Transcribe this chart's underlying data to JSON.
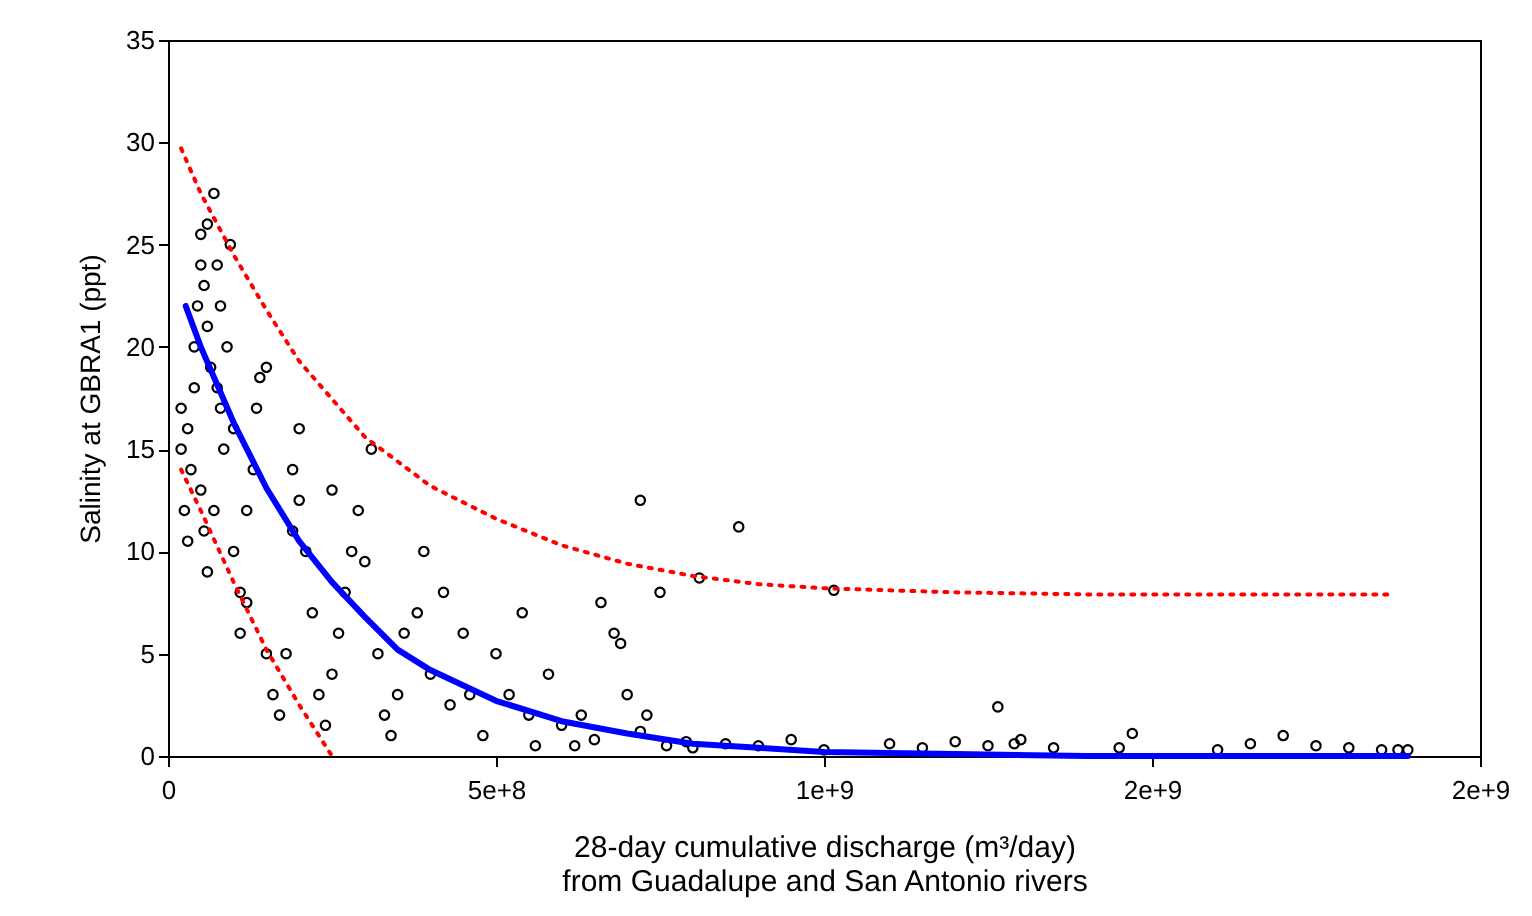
{
  "chart_data": {
    "type": "scatter",
    "xlabel": "28-day cumulative discharge (m³/day)\nfrom Guadalupe and San Antonio rivers",
    "ylabel": "Salinity at GBRA1 (ppt)",
    "xlim": [
      0,
      2000000000
    ],
    "ylim": [
      0,
      35
    ],
    "xticks": [
      0,
      {
        "value": 500000000,
        "label": "5e+8"
      },
      {
        "value": 1000000000,
        "label": "1e+9"
      },
      {
        "value": 1500000000,
        "label": "2e+9"
      },
      {
        "value": 2000000000,
        "label": "2e+9"
      }
    ],
    "yticks": [
      0,
      5,
      10,
      15,
      20,
      25,
      30,
      35
    ],
    "grid": false,
    "marker": "circle",
    "series": [
      {
        "color": "#000000",
        "x": [
          20000000,
          20000000,
          25000000,
          30000000,
          30000000,
          35000000,
          40000000,
          40000000,
          45000000,
          50000000,
          50000000,
          55000000,
          60000000,
          60000000,
          65000000,
          70000000,
          75000000,
          80000000,
          80000000,
          85000000,
          50000000,
          55000000,
          60000000,
          70000000,
          75000000,
          90000000,
          95000000,
          100000000,
          100000000,
          110000000,
          110000000,
          120000000,
          120000000,
          130000000,
          135000000,
          140000000,
          150000000,
          150000000,
          160000000,
          170000000,
          180000000,
          190000000,
          190000000,
          200000000,
          200000000,
          210000000,
          220000000,
          230000000,
          240000000,
          250000000,
          260000000,
          270000000,
          280000000,
          290000000,
          250000000,
          310000000,
          300000000,
          320000000,
          330000000,
          340000000,
          350000000,
          360000000,
          380000000,
          390000000,
          400000000,
          420000000,
          430000000,
          450000000,
          460000000,
          480000000,
          500000000,
          520000000,
          540000000,
          550000000,
          560000000,
          580000000,
          600000000,
          620000000,
          630000000,
          650000000,
          660000000,
          680000000,
          690000000,
          700000000,
          720000000,
          720000000,
          730000000,
          750000000,
          760000000,
          790000000,
          800000000,
          810000000,
          870000000,
          850000000,
          900000000,
          950000000,
          1000000000,
          1015000000,
          1100000000,
          1150000000,
          1200000000,
          1250000000,
          1265000000,
          1290000000,
          1300000000,
          1350000000,
          1450000000,
          1470000000,
          1600000000,
          1650000000,
          1700000000,
          1750000000,
          1800000000,
          1850000000,
          1875000000,
          1890000000
        ],
        "values": [
          17,
          15,
          12,
          10.5,
          16,
          14,
          18,
          20,
          22,
          24,
          25.5,
          23,
          21,
          26,
          19,
          27.5,
          24,
          22,
          17,
          15,
          13,
          11,
          9,
          12,
          18,
          20,
          25,
          16,
          10,
          8,
          6,
          7.5,
          12,
          14,
          17,
          18.5,
          19,
          5,
          3,
          2,
          5,
          11,
          14,
          16,
          12.5,
          10,
          7,
          3,
          1.5,
          4,
          6,
          8,
          10,
          12,
          13,
          15,
          9.5,
          5,
          2,
          1,
          3,
          6,
          7,
          10,
          4,
          8,
          2.5,
          6,
          3,
          1,
          5,
          3,
          7,
          2,
          0.5,
          4,
          1.5,
          0.5,
          2,
          0.8,
          7.5,
          6,
          5.5,
          3,
          12.5,
          1.2,
          2,
          8,
          0.5,
          0.7,
          0.4,
          8.7,
          11.2,
          0.6,
          0.5,
          0.8,
          0.3,
          8.1,
          0.6,
          0.4,
          0.7,
          0.5,
          2.4,
          0.6,
          0.8,
          0.4,
          0.4,
          1.1,
          0.3,
          0.6,
          1,
          0.5,
          0.4,
          0.3,
          0.3,
          0.3
        ]
      },
      {
        "type": "line",
        "marker": "none",
        "color": "#0000ff",
        "line_style": "solid",
        "x": [
          27000000,
          50000000,
          100000000,
          150000000,
          200000000,
          250000000,
          300000000,
          350000000,
          400000000,
          500000000,
          600000000,
          700000000,
          800000000,
          900000000,
          1000000000,
          1200000000,
          1400000000,
          1600000000,
          1890000000
        ],
        "values": [
          22,
          20,
          16.3,
          13.1,
          10.5,
          8.5,
          6.8,
          5.2,
          4.2,
          2.7,
          1.7,
          1.1,
          0.6,
          0.4,
          0.2,
          0.1,
          0,
          0,
          0
        ]
      },
      {
        "type": "line",
        "marker": "none",
        "color": "#ff0000",
        "line_style": "dotted",
        "x": [
          20000000,
          50000000,
          100000000,
          150000000,
          200000000,
          300000000,
          400000000,
          500000000,
          600000000,
          700000000,
          800000000,
          900000000,
          1000000000,
          1200000000,
          1400000000,
          1860000000
        ],
        "values": [
          29.7,
          27.5,
          24.5,
          21.8,
          19.3,
          15.6,
          13.2,
          11.6,
          10.3,
          9.4,
          8.8,
          8.4,
          8.2,
          8,
          7.9,
          7.9
        ]
      },
      {
        "type": "line",
        "marker": "none",
        "color": "#ff0000",
        "line_style": "dotted",
        "x": [
          20000000,
          50000000,
          100000000,
          150000000,
          200000000,
          250000000
        ],
        "values": [
          14,
          12,
          8.5,
          5.2,
          2.5,
          0
        ]
      }
    ]
  }
}
